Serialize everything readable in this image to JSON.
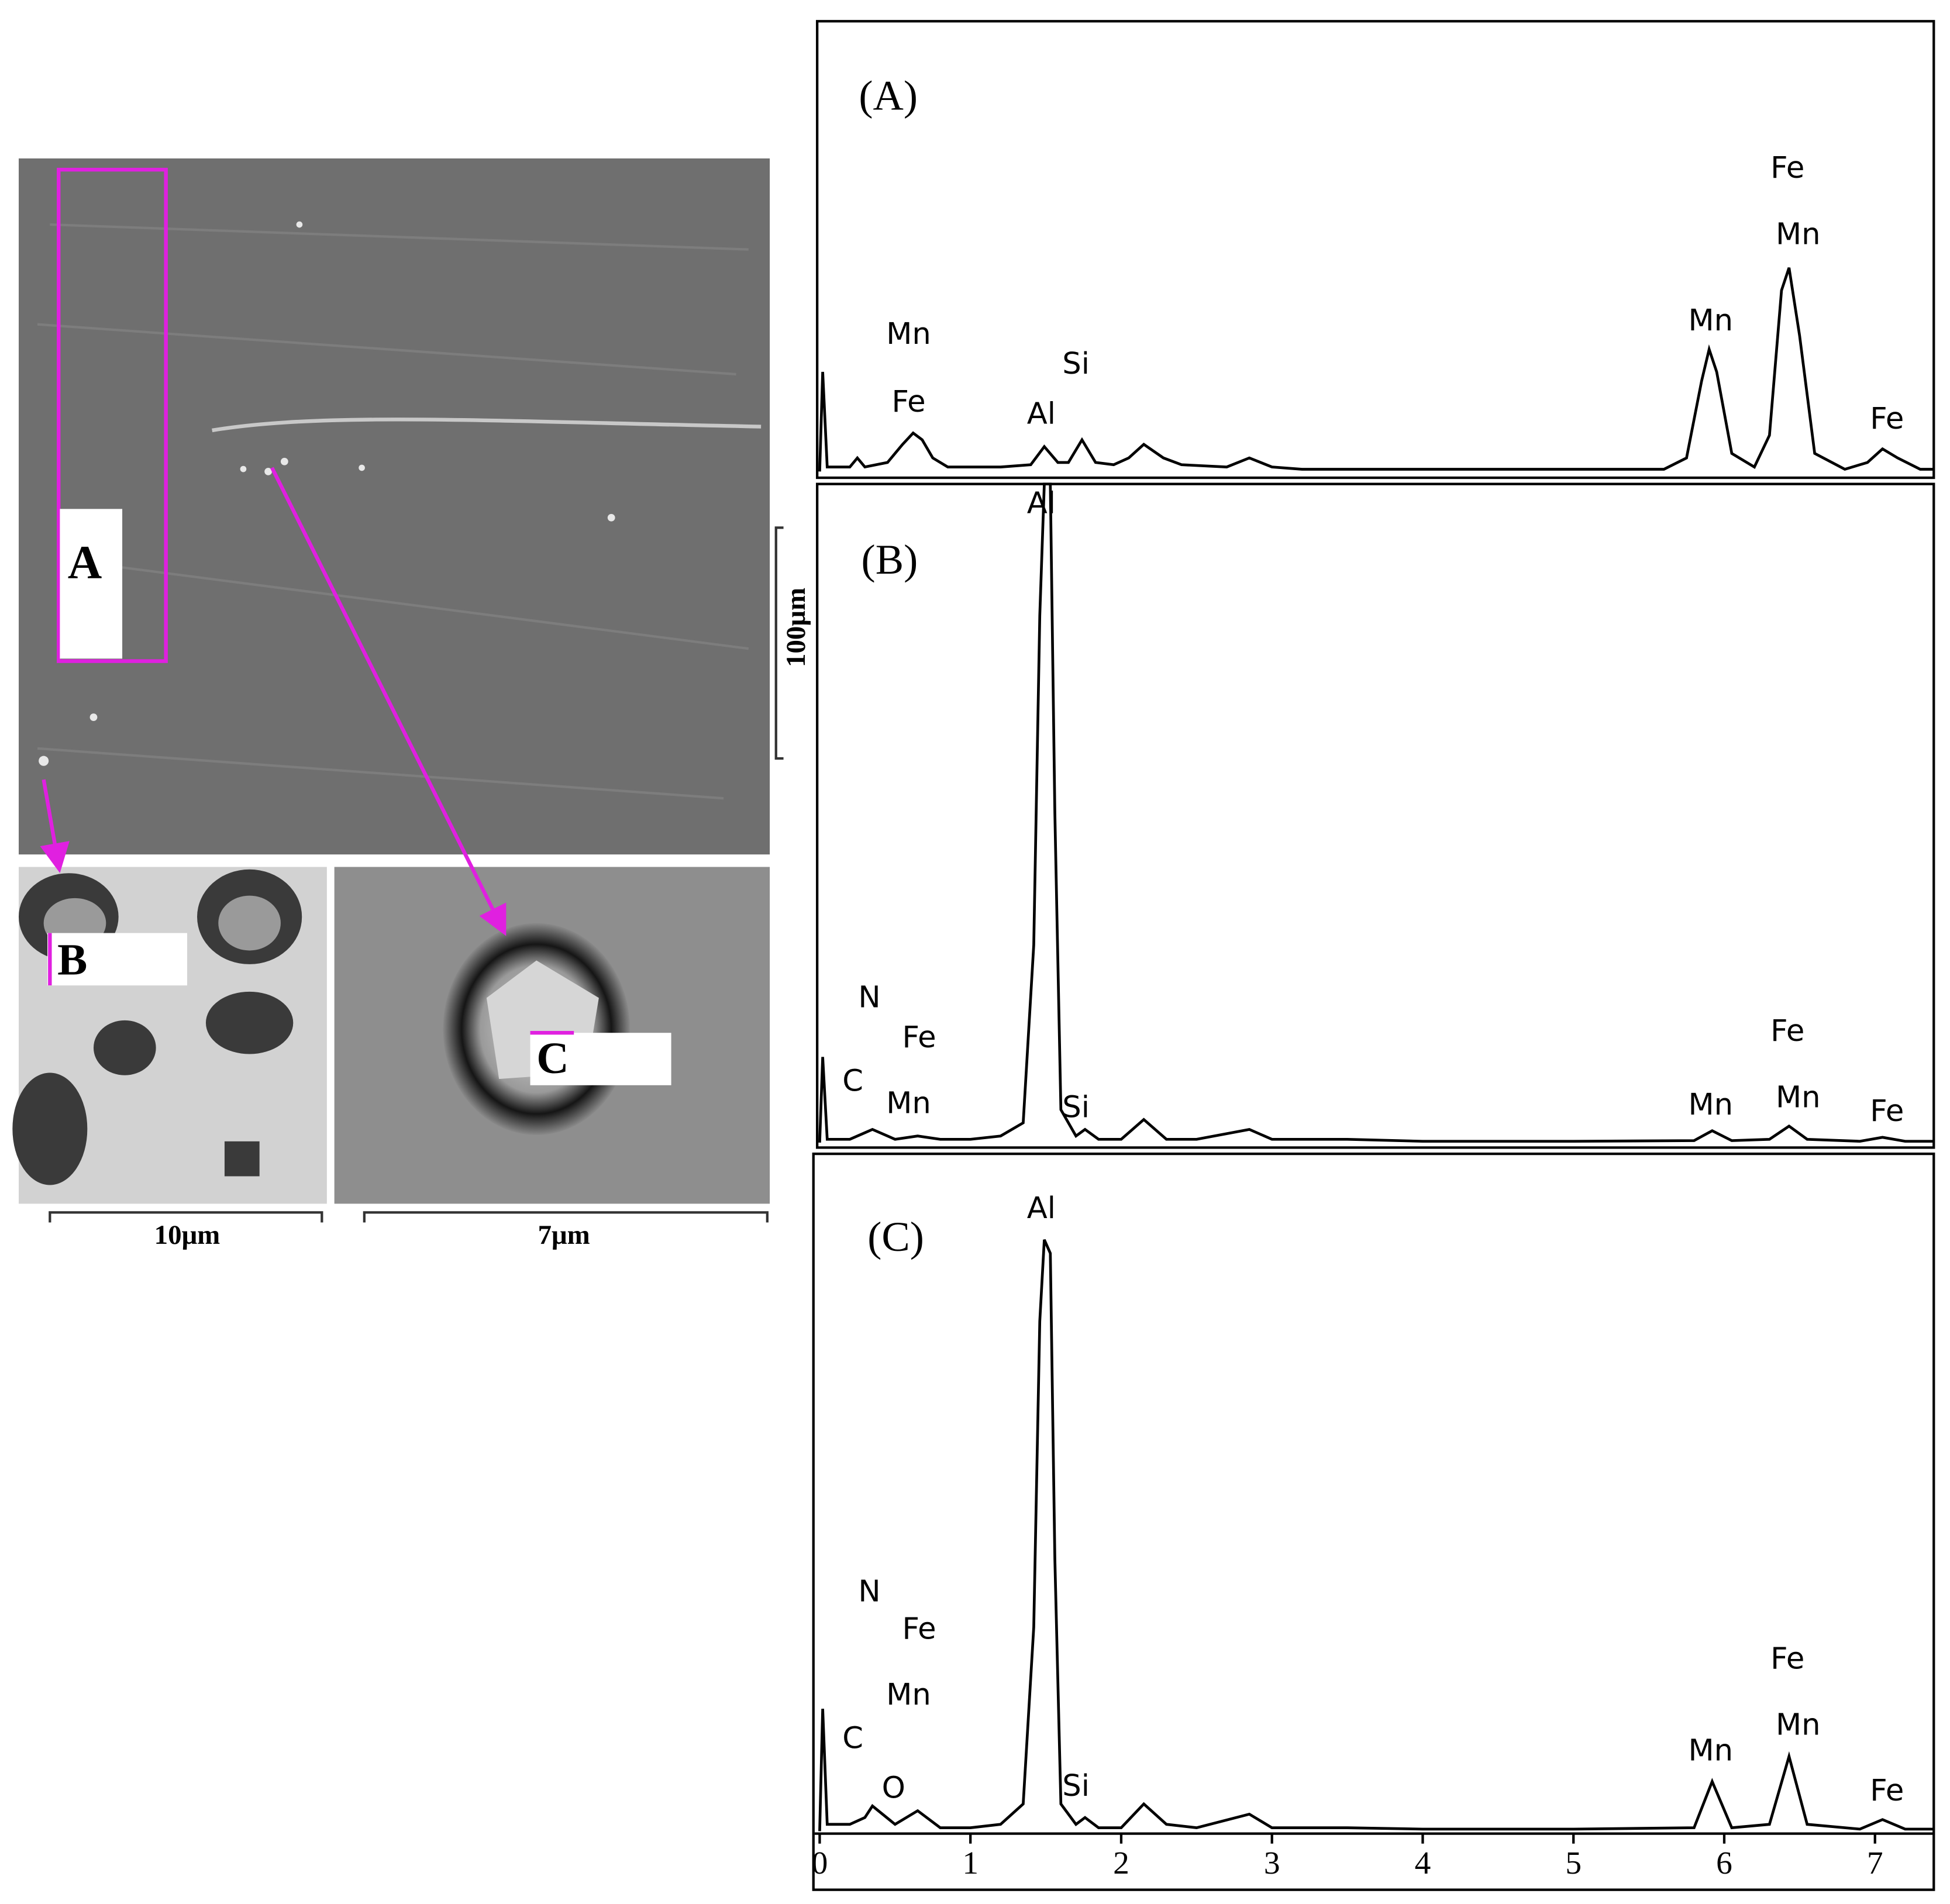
{
  "images": {
    "labels": [
      "A",
      "B",
      "C"
    ],
    "scale_bars": [
      "100μm",
      "10μm",
      "7μm"
    ]
  },
  "chart_data": [
    {
      "type": "line",
      "title": "(A)",
      "xlim": [
        0,
        7.39
      ],
      "ylim": [
        0,
        100
      ],
      "color": "#000000",
      "x": [
        0,
        0.02,
        0.05,
        0.2,
        0.25,
        0.3,
        0.45,
        0.55,
        0.62,
        0.68,
        0.75,
        0.85,
        1.2,
        1.4,
        1.49,
        1.58,
        1.65,
        1.74,
        1.83,
        1.95,
        2.05,
        2.15,
        2.28,
        2.4,
        2.7,
        2.85,
        3.0,
        3.2,
        4.0,
        5.0,
        5.6,
        5.75,
        5.85,
        5.9,
        5.95,
        6.05,
        6.2,
        6.3,
        6.38,
        6.43,
        6.5,
        6.6,
        6.8,
        6.95,
        7.05,
        7.15,
        7.3,
        7.39
      ],
      "values": [
        0,
        22,
        1,
        1,
        3,
        1,
        2,
        6,
        8.5,
        7,
        3,
        1,
        1,
        1.5,
        5.5,
        2,
        2,
        7,
        2,
        1.5,
        3,
        6,
        3,
        1.5,
        1,
        3,
        1,
        0.5,
        0.5,
        0.5,
        0.5,
        3,
        20,
        27,
        22,
        4,
        1,
        8,
        40,
        45,
        30,
        4,
        0.5,
        2,
        5,
        3,
        0.5,
        0.5
      ],
      "annotations": [
        {
          "text": "Mn",
          "x": 0.59,
          "y": 30
        },
        {
          "text": "Fe",
          "x": 0.59,
          "y": 15
        },
        {
          "text": "Al",
          "x": 1.47,
          "y": 12.4
        },
        {
          "text": "Si",
          "x": 1.7,
          "y": 23.4
        },
        {
          "text": "Mn",
          "x": 5.91,
          "y": 33
        },
        {
          "text": "Fe",
          "x": 6.42,
          "y": 66.7
        },
        {
          "text": "Mn",
          "x": 6.49,
          "y": 52
        },
        {
          "text": "Fe",
          "x": 7.08,
          "y": 11.3
        }
      ]
    },
    {
      "type": "line",
      "title": "(B)",
      "xlim": [
        0,
        7.39
      ],
      "ylim": [
        0,
        100
      ],
      "color": "#000000",
      "x": [
        0,
        0.02,
        0.05,
        0.2,
        0.3,
        0.35,
        0.5,
        0.65,
        0.8,
        1.0,
        1.2,
        1.35,
        1.42,
        1.46,
        1.49,
        1.53,
        1.56,
        1.6,
        1.7,
        1.76,
        1.85,
        2.0,
        2.15,
        2.3,
        2.5,
        2.85,
        3.0,
        3.5,
        4.0,
        5.0,
        5.8,
        5.92,
        6.05,
        6.3,
        6.43,
        6.55,
        6.9,
        7.05,
        7.2,
        7.39
      ],
      "values": [
        0,
        13,
        0.5,
        0.5,
        1.5,
        2,
        0.5,
        1,
        0.5,
        0.5,
        1,
        3,
        30,
        80,
        100,
        100,
        50,
        5,
        1,
        2,
        0.5,
        0.5,
        3.5,
        0.5,
        0.5,
        2,
        0.5,
        0.5,
        0.2,
        0.2,
        0.3,
        1.8,
        0.3,
        0.5,
        2.5,
        0.5,
        0.2,
        0.8,
        0.2,
        0.2
      ],
      "annotations": [
        {
          "text": "Al",
          "x": 1.47,
          "y": 96.8
        },
        {
          "text": "N",
          "x": 0.33,
          "y": 21.8
        },
        {
          "text": "Fe",
          "x": 0.66,
          "y": 15.7
        },
        {
          "text": "C",
          "x": 0.22,
          "y": 9.1
        },
        {
          "text": "Mn",
          "x": 0.59,
          "y": 5.7
        },
        {
          "text": "Si",
          "x": 1.7,
          "y": 5.1
        },
        {
          "text": "Fe",
          "x": 6.42,
          "y": 16.7
        },
        {
          "text": "Mn",
          "x": 5.91,
          "y": 5.5
        },
        {
          "text": "Mn",
          "x": 6.49,
          "y": 6.6
        },
        {
          "text": "Fe",
          "x": 7.08,
          "y": 4.5
        }
      ]
    },
    {
      "type": "line",
      "title": "(C)",
      "xlim": [
        0,
        7.39
      ],
      "ylim": [
        0,
        100
      ],
      "color": "#000000",
      "xticks": [
        0,
        1,
        2,
        3,
        4,
        5,
        6,
        7
      ],
      "x": [
        0,
        0.02,
        0.05,
        0.2,
        0.3,
        0.35,
        0.5,
        0.65,
        0.8,
        1.0,
        1.2,
        1.35,
        1.42,
        1.46,
        1.49,
        1.53,
        1.56,
        1.6,
        1.7,
        1.76,
        1.85,
        2.0,
        2.15,
        2.3,
        2.5,
        2.85,
        3.0,
        3.5,
        4.0,
        5.0,
        5.8,
        5.92,
        6.05,
        6.3,
        6.43,
        6.55,
        6.9,
        7.05,
        7.2,
        7.39
      ],
      "values": [
        0,
        18,
        1,
        1,
        2,
        3.7,
        1,
        3,
        0.5,
        0.5,
        1,
        4,
        30,
        75,
        87,
        85,
        40,
        4,
        1,
        2,
        0.5,
        0.5,
        4,
        1,
        0.5,
        2.5,
        0.5,
        0.5,
        0.3,
        0.3,
        0.5,
        7.3,
        0.5,
        1,
        11,
        1,
        0.3,
        1.7,
        0.3,
        0.3
      ],
      "annotations": [
        {
          "text": "Al",
          "x": 1.47,
          "y": 91.4
        },
        {
          "text": "N",
          "x": 0.33,
          "y": 35
        },
        {
          "text": "Fe",
          "x": 0.66,
          "y": 29.5
        },
        {
          "text": "Mn",
          "x": 0.59,
          "y": 19.8
        },
        {
          "text": "C",
          "x": 0.22,
          "y": 13.4
        },
        {
          "text": "O",
          "x": 0.49,
          "y": 6.1
        },
        {
          "text": "Si",
          "x": 1.7,
          "y": 6.4
        },
        {
          "text": "Fe",
          "x": 6.42,
          "y": 25.1
        },
        {
          "text": "Mn",
          "x": 5.91,
          "y": 11.6
        },
        {
          "text": "Mn",
          "x": 6.49,
          "y": 15.4
        },
        {
          "text": "Fe",
          "x": 7.08,
          "y": 5.7
        }
      ]
    }
  ]
}
